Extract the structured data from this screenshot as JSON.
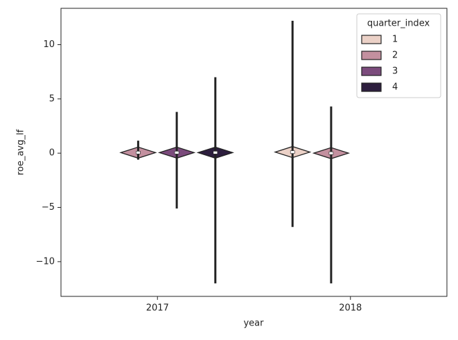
{
  "chart_data": {
    "type": "violin",
    "x_label": "year",
    "y_label": "roe_avg_lf",
    "categories": [
      "2017",
      "2018"
    ],
    "legend_title": "quarter_index",
    "legend_position": "upper right",
    "ylim": [
      -13.2,
      13.35
    ],
    "yticks": [
      {
        "value": -10,
        "label": "−10"
      },
      {
        "value": -5,
        "label": "−5"
      },
      0,
      5,
      10
    ],
    "series": [
      {
        "name": "1",
        "color": "#ebd1c7",
        "min": [
          null,
          -6.8
        ],
        "max": [
          null,
          12.2
        ],
        "median": [
          null,
          0.1
        ]
      },
      {
        "name": "2",
        "color": "#c3909f",
        "min": [
          -0.6,
          -12.0
        ],
        "max": [
          1.15,
          4.3
        ],
        "median": [
          0.05,
          0.0
        ]
      },
      {
        "name": "3",
        "color": "#7b4b7c",
        "min": [
          -5.1,
          null
        ],
        "max": [
          3.8,
          null
        ],
        "median": [
          0.05,
          null
        ]
      },
      {
        "name": "4",
        "color": "#2d1e3e",
        "min": [
          -12.0,
          null
        ],
        "max": [
          7.0,
          null
        ],
        "median": [
          0.05,
          null
        ]
      }
    ]
  }
}
